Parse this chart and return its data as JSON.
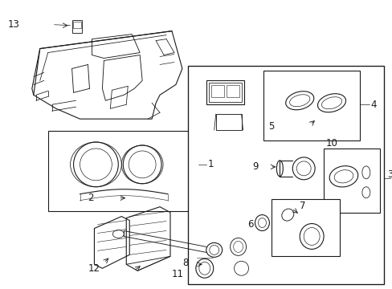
{
  "bg_color": "#ffffff",
  "line_color": "#1a1a1a",
  "fig_width": 4.89,
  "fig_height": 3.6,
  "dpi": 100,
  "lw": 0.8
}
